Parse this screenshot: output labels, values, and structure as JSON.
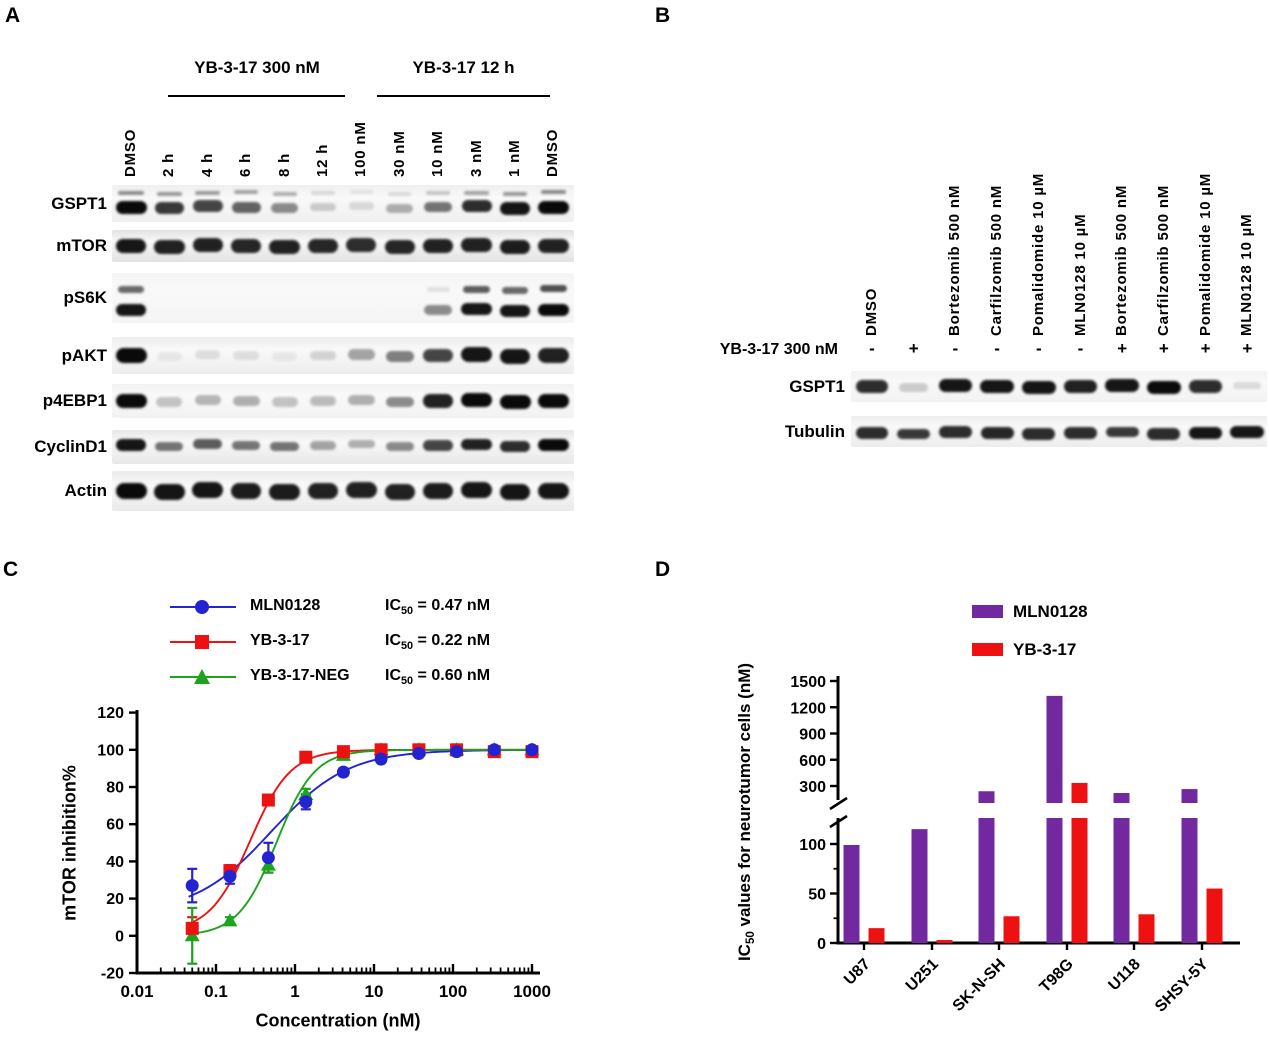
{
  "panel_a": {
    "label": "A",
    "group_headers": [
      {
        "label": "YB-3-17 300 nM"
      },
      {
        "label": "YB-3-17 12 h"
      }
    ],
    "lanes": [
      "DMSO",
      "2 h",
      "4 h",
      "6 h",
      "8 h",
      "12 h",
      "100 nM",
      "30 nM",
      "10 nM",
      "3 nM",
      "1 nM",
      "DMSO"
    ],
    "blots": [
      {
        "label": "GSPT1",
        "bands": [
          1,
          0.8,
          0.75,
          0.62,
          0.45,
          0.18,
          0.12,
          0.3,
          0.55,
          0.85,
          0.95,
          1
        ],
        "upper": [
          0.45,
          0.4,
          0.38,
          0.35,
          0.3,
          0.12,
          0.08,
          0.12,
          0.2,
          0.35,
          0.4,
          0.45
        ]
      },
      {
        "label": "mTOR",
        "bands": [
          0.95,
          0.9,
          0.9,
          0.88,
          0.9,
          0.88,
          0.85,
          0.88,
          0.9,
          0.9,
          0.92,
          0.9
        ]
      },
      {
        "label": "pS6K",
        "bands": [
          0.95,
          0,
          0,
          0,
          0,
          0,
          0,
          0,
          0.45,
          0.95,
          0.95,
          1
        ],
        "upper": [
          0.6,
          0,
          0,
          0,
          0,
          0,
          0,
          0,
          0.1,
          0.65,
          0.6,
          0.7
        ]
      },
      {
        "label": "pAKT",
        "bands": [
          1,
          0.06,
          0.1,
          0.1,
          0.06,
          0.15,
          0.35,
          0.5,
          0.75,
          0.95,
          0.95,
          0.9
        ]
      },
      {
        "label": "p4EBP1",
        "bands": [
          1,
          0.22,
          0.28,
          0.3,
          0.22,
          0.25,
          0.3,
          0.45,
          0.9,
          1,
          1,
          1
        ]
      },
      {
        "label": "CyclinD1",
        "bands": [
          0.95,
          0.55,
          0.65,
          0.55,
          0.55,
          0.35,
          0.3,
          0.45,
          0.75,
          0.9,
          0.85,
          1
        ]
      },
      {
        "label": "Actin",
        "bands": [
          1,
          0.95,
          0.95,
          0.92,
          0.92,
          0.9,
          0.9,
          0.9,
          0.92,
          0.95,
          0.95,
          0.95
        ]
      }
    ]
  },
  "panel_b": {
    "label": "B",
    "treatment_row_label": "YB-3-17 300 nM",
    "lanes": [
      {
        "label": "DMSO",
        "yb": "-"
      },
      {
        "label": "",
        "yb": "+"
      },
      {
        "label": "Bortezomib 500 nM",
        "yb": "-"
      },
      {
        "label": "Carfilzomib 500 nM",
        "yb": "-"
      },
      {
        "label": "Pomalidomide 10 µM",
        "yb": "-"
      },
      {
        "label": "MLN0128 10 µM",
        "yb": "-"
      },
      {
        "label": "Bortezomib 500 nM",
        "yb": "+"
      },
      {
        "label": "Carfilzomib 500 nM",
        "yb": "+"
      },
      {
        "label": "Pomalidomide 10 µM",
        "yb": "+"
      },
      {
        "label": "MLN0128 10 µM",
        "yb": "+"
      }
    ],
    "blots": [
      {
        "label": "GSPT1",
        "bands": [
          0.85,
          0.18,
          0.95,
          0.95,
          0.95,
          0.9,
          0.95,
          1,
          0.85,
          0.12
        ]
      },
      {
        "label": "Tubulin",
        "bands": [
          0.85,
          0.8,
          0.85,
          0.88,
          0.85,
          0.85,
          0.8,
          0.85,
          0.95,
          0.95
        ]
      }
    ]
  },
  "chart_data": [
    {
      "panel": "C",
      "type": "line",
      "xscale": "log",
      "xlabel": "Concentration (nM)",
      "ylabel": "mTOR inhibition%",
      "xlim": [
        0.01,
        1000
      ],
      "ylim": [
        -20,
        120
      ],
      "xticks": [
        0.01,
        0.1,
        1,
        10,
        100,
        1000
      ],
      "yticks": [
        -20,
        0,
        20,
        40,
        60,
        80,
        100,
        120
      ],
      "grid": false,
      "legend_position": "top",
      "x": [
        0.05,
        0.15,
        0.46,
        1.37,
        4.1,
        12.3,
        37,
        111,
        333,
        1000
      ],
      "series": [
        {
          "name": "MLN0128",
          "ic50": "0.47 nM",
          "marker": "circle",
          "color": "#2323d2",
          "values": [
            27,
            32,
            42,
            72,
            88,
            95,
            98,
            99,
            100,
            100
          ],
          "err": [
            9,
            4,
            8,
            4,
            2,
            0,
            0,
            0,
            0,
            0
          ],
          "fit": {
            "bottom": 12,
            "top": 100,
            "ec50": 0.5,
            "hill": 0.9
          }
        },
        {
          "name": "YB-3-17",
          "ic50": "0.22 nM",
          "marker": "square",
          "color": "#ee1111",
          "values": [
            4,
            35,
            73,
            96,
            99,
            100,
            100,
            100,
            99,
            99
          ],
          "err": [
            6,
            3,
            0,
            0,
            0,
            0,
            0,
            0,
            0,
            0
          ],
          "fit": {
            "bottom": 2,
            "top": 100,
            "ec50": 0.27,
            "hill": 1.7
          }
        },
        {
          "name": "YB-3-17-NEG",
          "ic50": "0.60 nM",
          "marker": "triangle",
          "color": "#1ca41c",
          "values": [
            0,
            8,
            38,
            76,
            97,
            100,
            100,
            100,
            100,
            100
          ],
          "err": [
            15,
            2,
            4,
            3,
            0,
            0,
            0,
            0,
            0,
            0
          ],
          "fit": {
            "bottom": 0,
            "top": 100,
            "ec50": 0.58,
            "hill": 1.8
          }
        }
      ]
    },
    {
      "panel": "D",
      "type": "bar",
      "ylabel": "IC50 values for neurotumor cells (nM)",
      "categories": [
        "U87",
        "U251",
        "SK-N-SH",
        "T98G",
        "U118",
        "SHSY-5Y"
      ],
      "series": [
        {
          "name": "MLN0128",
          "color": "#7229a0",
          "values": [
            99,
            115,
            240,
            1330,
            220,
            265
          ]
        },
        {
          "name": "YB-3-17",
          "color": "#ee1111",
          "values": [
            15,
            3,
            27,
            335,
            29,
            55
          ]
        }
      ],
      "axis_break": true,
      "lower_ticks": [
        0,
        50,
        100
      ],
      "upper_ticks": [
        300,
        600,
        900,
        1200,
        1500
      ],
      "lower_range": [
        0,
        120
      ],
      "upper_range": [
        190,
        1500
      ],
      "grid": false,
      "legend_position": "top"
    }
  ]
}
